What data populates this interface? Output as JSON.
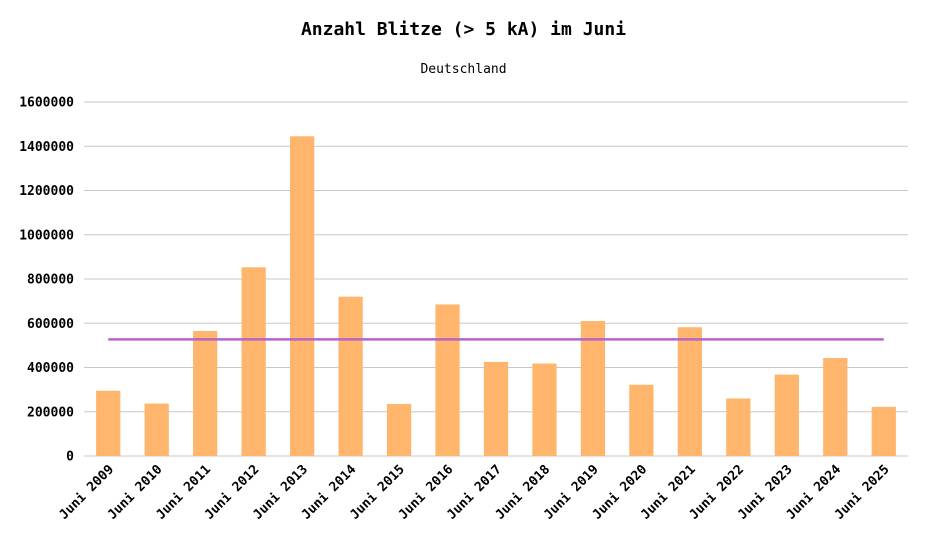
{
  "chart_data": {
    "type": "bar",
    "title": "Anzahl Blitze (> 5 kA) im Juni",
    "subtitle": "Deutschland",
    "xlabel": "",
    "ylabel": "",
    "categories": [
      "Juni 2009",
      "Juni 2010",
      "Juni 2011",
      "Juni 2012",
      "Juni 2013",
      "Juni 2014",
      "Juni 2015",
      "Juni 2016",
      "Juni 2017",
      "Juni 2018",
      "Juni 2019",
      "Juni 2020",
      "Juni 2021",
      "Juni 2022",
      "Juni 2023",
      "Juni 2024",
      "Juni 2025"
    ],
    "series": [
      {
        "values": [
          295000,
          237000,
          565000,
          853000,
          1445000,
          720000,
          235000,
          685000,
          425000,
          418000,
          610000,
          322000,
          582000,
          260000,
          368000,
          443000,
          222000
        ],
        "color": "#ffb56c"
      }
    ],
    "reference_line": {
      "value": 527000,
      "color": "#b565c9"
    },
    "ylim": [
      0,
      1600000
    ],
    "yticks": [
      "0",
      "200000",
      "400000",
      "600000",
      "800000",
      "1000000",
      "1200000",
      "1400000",
      "1600000"
    ],
    "ytick_values": [
      0,
      200000,
      400000,
      600000,
      800000,
      1000000,
      1200000,
      1400000,
      1600000
    ],
    "grid": true,
    "grid_color": "#c8c8c8",
    "legend": "none"
  }
}
